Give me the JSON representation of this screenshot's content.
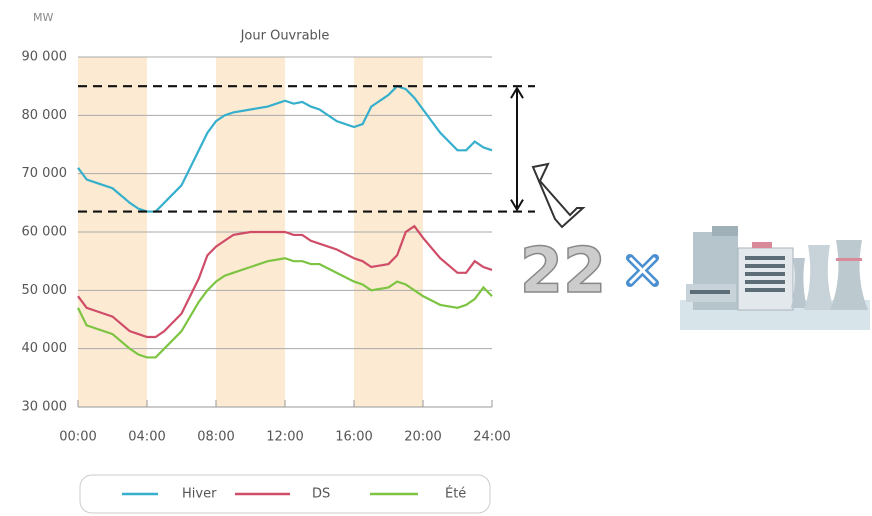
{
  "chart_data": {
    "type": "line",
    "unit_label": "MW",
    "title": "Jour Ouvrable",
    "x": [
      0,
      0.5,
      1,
      2,
      3,
      3.5,
      4,
      4.5,
      5,
      6,
      7,
      7.5,
      8,
      8.5,
      9,
      10,
      11,
      12,
      12.5,
      13,
      13.5,
      14,
      15,
      16,
      16.5,
      17,
      18,
      18.5,
      19,
      19.5,
      20,
      21,
      22,
      22.5,
      23,
      23.5,
      24
    ],
    "series": [
      {
        "name": "Hiver",
        "color": "#36afcc",
        "values": [
          71000,
          69000,
          68500,
          67500,
          65000,
          64000,
          63500,
          63500,
          65000,
          68000,
          74000,
          77000,
          79000,
          80000,
          80500,
          81000,
          81500,
          82500,
          82000,
          82300,
          81500,
          81000,
          79000,
          78000,
          78500,
          81500,
          83500,
          85000,
          84500,
          83000,
          81000,
          77000,
          74000,
          74000,
          75500,
          74500,
          74000
        ]
      },
      {
        "name": "DS",
        "color": "#cf4d68",
        "values": [
          49000,
          47000,
          46500,
          45500,
          43000,
          42500,
          42000,
          42000,
          43000,
          46000,
          52000,
          56000,
          57500,
          58500,
          59500,
          60000,
          60000,
          60000,
          59500,
          59500,
          58500,
          58000,
          57000,
          55500,
          55000,
          54000,
          54500,
          56000,
          60000,
          61000,
          59000,
          55500,
          53000,
          53000,
          55000,
          54000,
          53500
        ]
      },
      {
        "name": "Été",
        "color": "#7dc443",
        "values": [
          47000,
          44000,
          43500,
          42500,
          40000,
          39000,
          38500,
          38500,
          40000,
          43000,
          48000,
          50000,
          51500,
          52500,
          53000,
          54000,
          55000,
          55500,
          55000,
          55000,
          54500,
          54500,
          53000,
          51500,
          51000,
          50000,
          50500,
          51500,
          51000,
          50000,
          49000,
          47500,
          47000,
          47500,
          48500,
          50500,
          49000
        ]
      }
    ],
    "xlim": [
      0,
      24
    ],
    "xticks": [
      {
        "value": 0,
        "label": "00:00"
      },
      {
        "value": 4,
        "label": "04:00"
      },
      {
        "value": 8,
        "label": "08:00"
      },
      {
        "value": 12,
        "label": "12:00"
      },
      {
        "value": 16,
        "label": "16:00"
      },
      {
        "value": 20,
        "label": "20:00"
      },
      {
        "value": 24,
        "label": "24:00"
      }
    ],
    "ylim": [
      30000,
      90000
    ],
    "yticks": [
      {
        "value": 30000,
        "label": "30 000"
      },
      {
        "value": 40000,
        "label": "40 000"
      },
      {
        "value": 50000,
        "label": "50 000"
      },
      {
        "value": 60000,
        "label": "60 000"
      },
      {
        "value": 70000,
        "label": "70 000"
      },
      {
        "value": 80000,
        "label": "80 000"
      },
      {
        "value": 90000,
        "label": "90 000"
      }
    ],
    "grid": true,
    "shaded_ranges": [
      [
        0,
        4
      ],
      [
        8,
        12
      ],
      [
        16,
        20
      ]
    ],
    "shade_color": "#fcebd2",
    "range_lines": [
      85000,
      63500
    ],
    "annotation": "22"
  }
}
